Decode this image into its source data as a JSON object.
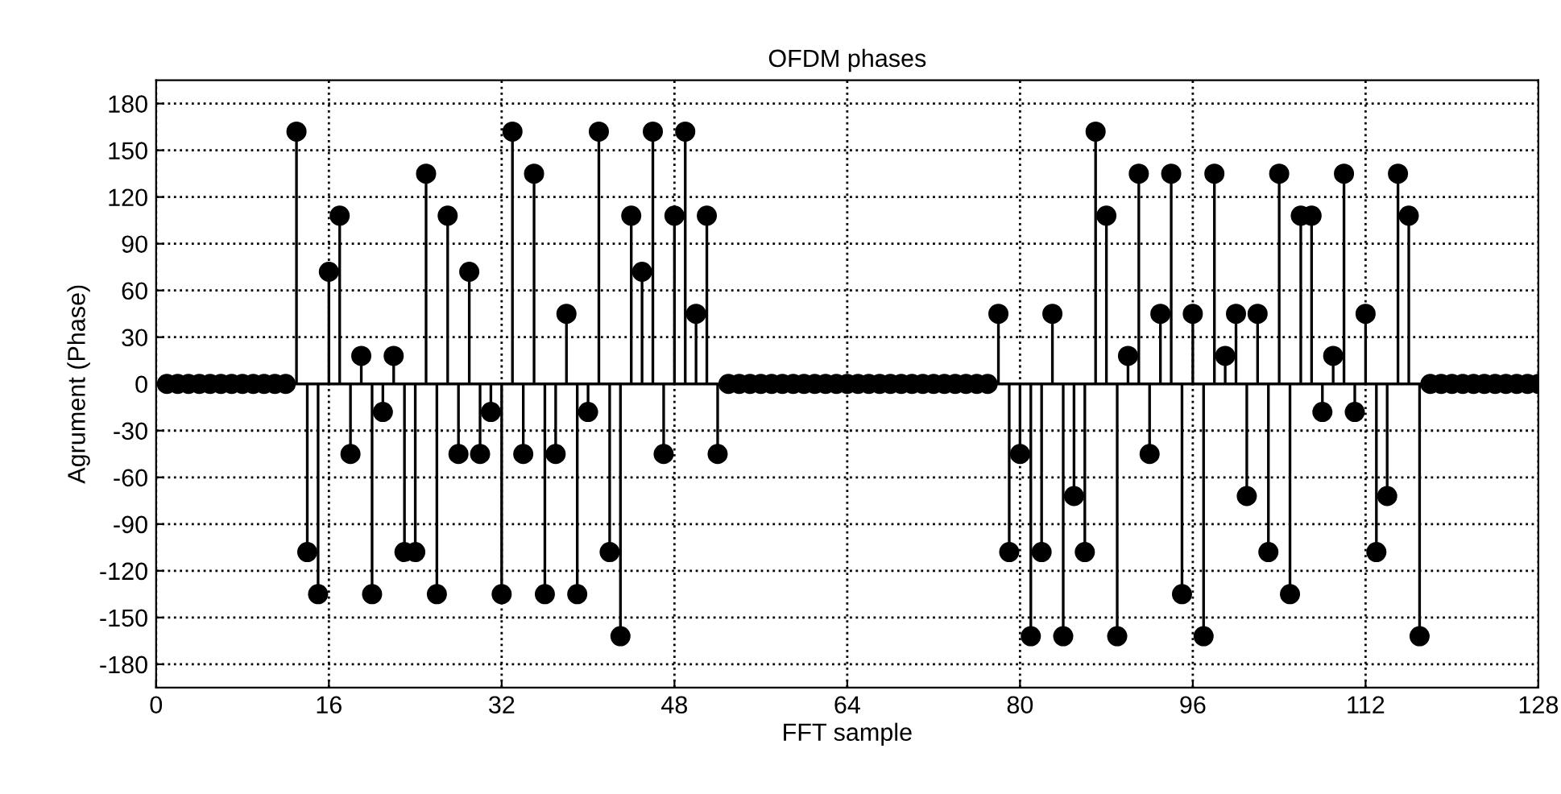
{
  "chart_data": {
    "type": "lollipop",
    "title": "OFDM phases",
    "xlabel": "FFT sample",
    "ylabel": "Agrument (Phase)",
    "x": [
      1,
      2,
      3,
      4,
      5,
      6,
      7,
      8,
      9,
      10,
      11,
      12,
      13,
      14,
      15,
      16,
      17,
      18,
      19,
      20,
      21,
      22,
      23,
      24,
      25,
      26,
      27,
      28,
      29,
      30,
      31,
      32,
      33,
      34,
      35,
      36,
      37,
      38,
      39,
      40,
      41,
      42,
      43,
      44,
      45,
      46,
      47,
      48,
      49,
      50,
      51,
      52,
      53,
      54,
      55,
      56,
      57,
      58,
      59,
      60,
      61,
      62,
      63,
      64,
      65,
      66,
      67,
      68,
      69,
      70,
      71,
      72,
      73,
      74,
      75,
      76,
      77,
      78,
      79,
      80,
      81,
      82,
      83,
      84,
      85,
      86,
      87,
      88,
      89,
      90,
      91,
      92,
      93,
      94,
      95,
      96,
      97,
      98,
      99,
      100,
      101,
      102,
      103,
      104,
      105,
      106,
      107,
      108,
      109,
      110,
      111,
      112,
      113,
      114,
      115,
      116,
      117,
      118,
      119,
      120,
      121,
      122,
      123,
      124,
      125,
      126,
      127,
      128
    ],
    "series": [
      {
        "color": "#000000",
        "values": [
          0,
          0,
          0,
          0,
          0,
          0,
          0,
          0,
          0,
          0,
          0,
          0,
          162,
          -108,
          -135,
          72,
          108,
          -45,
          18,
          -135,
          -18,
          18,
          -108,
          -108,
          135,
          -135,
          108,
          -45,
          72,
          -45,
          -18,
          -135,
          162,
          -45,
          135,
          -135,
          -45,
          45,
          -135,
          -18,
          162,
          -108,
          -162,
          108,
          72,
          162,
          -45,
          108,
          162,
          45,
          108,
          -45,
          0,
          0,
          0,
          0,
          0,
          0,
          0,
          0,
          0,
          0,
          0,
          0,
          0,
          0,
          0,
          0,
          0,
          0,
          0,
          0,
          0,
          0,
          0,
          0,
          0,
          45,
          -108,
          -45,
          -162,
          -108,
          45,
          -162,
          -72,
          -108,
          162,
          108,
          -162,
          18,
          135,
          -45,
          45,
          135,
          -135,
          45,
          -162,
          135,
          18,
          45,
          -72,
          45,
          -108,
          135,
          -135,
          108,
          108,
          -18,
          18,
          135,
          -18,
          45,
          -108,
          -72,
          135,
          108,
          -162,
          0,
          0,
          0,
          0,
          0,
          0,
          0,
          0,
          0,
          0,
          0
        ]
      }
    ],
    "xlim": [
      0,
      128
    ],
    "xticks": [
      0,
      16,
      32,
      48,
      64,
      80,
      96,
      112,
      128
    ],
    "ylim": [
      -195,
      195
    ],
    "yticks": [
      -180,
      -150,
      -120,
      -90,
      -60,
      -30,
      0,
      30,
      60,
      90,
      120,
      150,
      180
    ],
    "grid": true,
    "marker": "circle",
    "line_style": "solid"
  }
}
